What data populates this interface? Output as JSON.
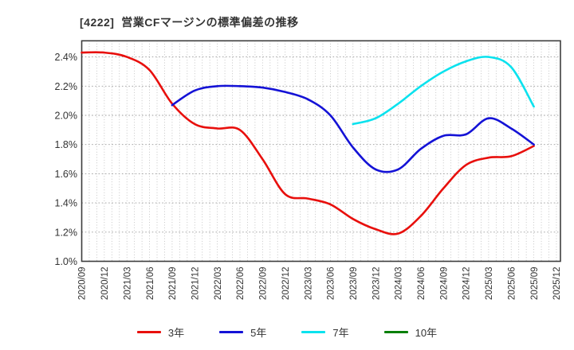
{
  "page": {
    "title": "[4222]  営業CFマージンの標準偏差の推移"
  },
  "chart_data": {
    "type": "line",
    "title": "[4222]  営業CFマージンの標準偏差の推移",
    "xlabel": "",
    "ylabel": "",
    "y_unit": "%",
    "ylim": [
      1.0,
      2.51
    ],
    "yticks": [
      1.0,
      1.2,
      1.4,
      1.6,
      1.8,
      2.0,
      2.2,
      2.4
    ],
    "ytick_labels": [
      "1.0%",
      "1.2%",
      "1.4%",
      "1.6%",
      "1.8%",
      "2.0%",
      "2.2%",
      "2.4%"
    ],
    "grid": {
      "horizontal_step": 0.2,
      "vertical_minor": "monthly",
      "shown": true
    },
    "legend_position": "bottom",
    "categories": [
      "2020/09",
      "2020/12",
      "2021/03",
      "2021/06",
      "2021/09",
      "2021/12",
      "2022/03",
      "2022/06",
      "2022/09",
      "2022/12",
      "2023/03",
      "2023/06",
      "2023/09",
      "2023/12",
      "2024/03",
      "2024/06",
      "2024/09",
      "2024/12",
      "2025/03",
      "2025/06",
      "2025/09",
      "2025/12"
    ],
    "series": [
      {
        "name": "3年",
        "color": "#e80f0c",
        "values": [
          2.43,
          2.43,
          2.4,
          2.31,
          2.08,
          1.94,
          1.91,
          1.9,
          1.7,
          1.46,
          1.43,
          1.39,
          1.29,
          1.22,
          1.19,
          1.31,
          1.5,
          1.66,
          1.71,
          1.72,
          1.79,
          null
        ]
      },
      {
        "name": "5年",
        "color": "#1412d6",
        "values": [
          null,
          null,
          null,
          null,
          2.07,
          2.17,
          2.2,
          2.2,
          2.19,
          2.16,
          2.11,
          2.0,
          1.78,
          1.63,
          1.63,
          1.77,
          1.86,
          1.87,
          1.98,
          1.91,
          1.8,
          null
        ]
      },
      {
        "name": "7年",
        "color": "#0ae2ee",
        "values": [
          null,
          null,
          null,
          null,
          null,
          null,
          null,
          null,
          null,
          null,
          null,
          null,
          1.94,
          1.98,
          2.08,
          2.2,
          2.3,
          2.37,
          2.4,
          2.33,
          2.06,
          null
        ]
      },
      {
        "name": "10年",
        "color": "#067f06",
        "values": [
          null,
          null,
          null,
          null,
          null,
          null,
          null,
          null,
          null,
          null,
          null,
          null,
          null,
          null,
          null,
          null,
          null,
          null,
          null,
          null,
          null,
          null
        ]
      }
    ]
  }
}
